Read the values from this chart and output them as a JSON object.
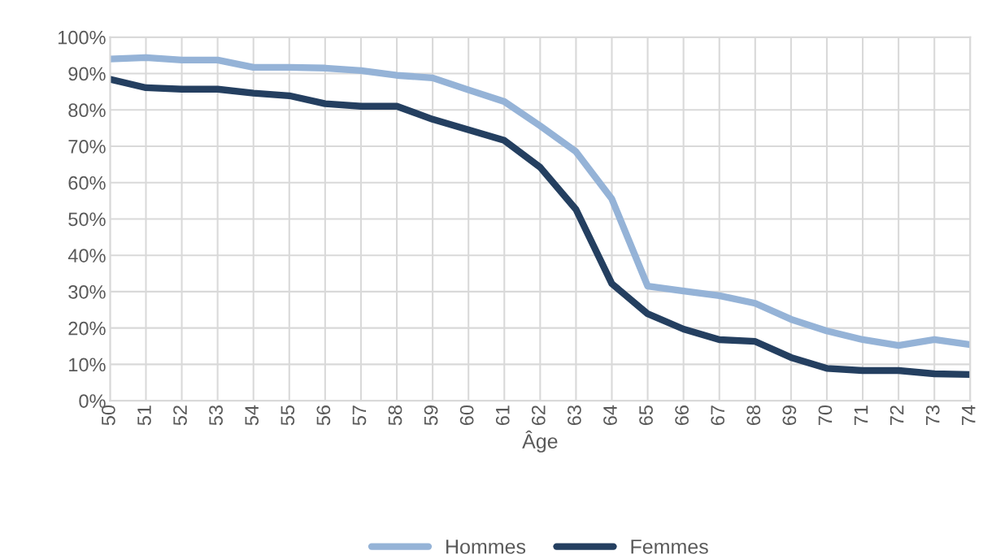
{
  "chart_data": {
    "type": "line",
    "xlabel": "Âge",
    "categories": [
      "50",
      "51",
      "52",
      "53",
      "54",
      "55",
      "56",
      "57",
      "58",
      "59",
      "60",
      "61",
      "62",
      "63",
      "64",
      "65",
      "66",
      "67",
      "68",
      "69",
      "70",
      "71",
      "72",
      "73",
      "74"
    ],
    "series": [
      {
        "name": "Hommes",
        "color": "#95b3d7",
        "values": [
          94,
          94.4,
          93.7,
          93.7,
          91.7,
          91.7,
          91.5,
          90.8,
          89.5,
          88.8,
          85.5,
          82.3,
          75.6,
          68.5,
          55.5,
          31.5,
          30.2,
          28.9,
          26.8,
          22.4,
          19.2,
          16.8,
          15.2,
          16.8,
          15.4
        ]
      },
      {
        "name": "Femmes",
        "color": "#243f60",
        "values": [
          88.4,
          86.1,
          85.7,
          85.7,
          84.6,
          83.9,
          81.7,
          81,
          81,
          77.4,
          74.5,
          71.6,
          64.2,
          52.6,
          32.2,
          23.9,
          19.7,
          16.8,
          16.3,
          11.9,
          8.9,
          8.3,
          8.3,
          7.4,
          7.2
        ]
      }
    ],
    "ylim": [
      0,
      100
    ],
    "yticks": [
      {
        "value": 0,
        "label": "0%"
      },
      {
        "value": 10,
        "label": "10%"
      },
      {
        "value": 20,
        "label": "20%"
      },
      {
        "value": 30,
        "label": "30%"
      },
      {
        "value": 40,
        "label": "40%"
      },
      {
        "value": 50,
        "label": "50%"
      },
      {
        "value": 60,
        "label": "60%"
      },
      {
        "value": 70,
        "label": "70%"
      },
      {
        "value": 80,
        "label": "80%"
      },
      {
        "value": 90,
        "label": "90%"
      },
      {
        "value": 100,
        "label": "100%"
      }
    ],
    "grid": true,
    "legend": "bottom",
    "marker": "none",
    "line_style": "solid"
  }
}
